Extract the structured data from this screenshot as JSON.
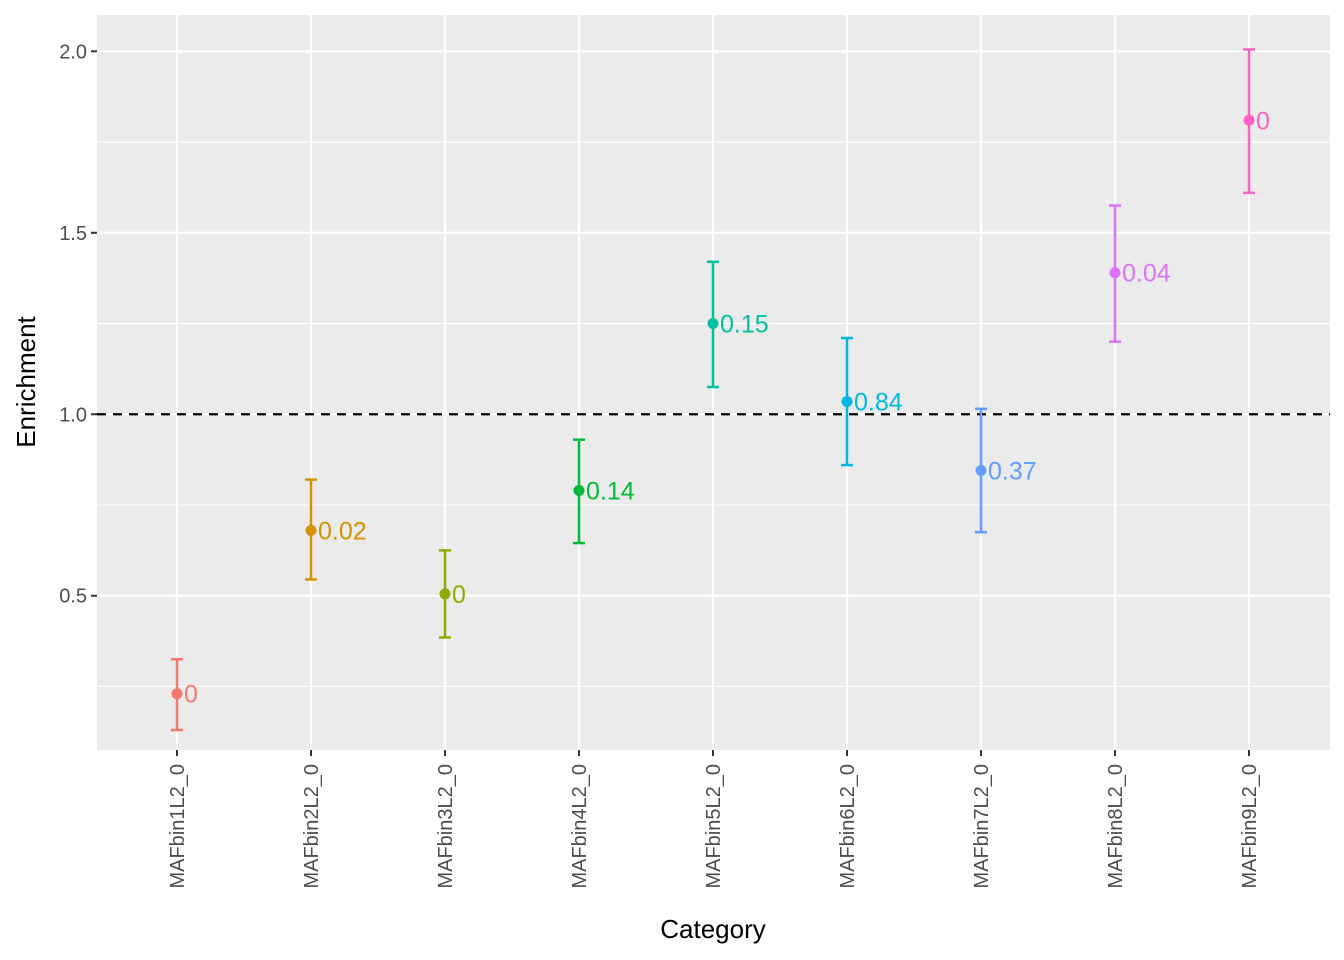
{
  "chart_data": {
    "type": "scatter",
    "xlabel": "Category",
    "ylabel": "Enrichment",
    "ylim": [
      0.075,
      2.1
    ],
    "y_ticks": [
      0.5,
      1.0,
      1.5,
      2.0
    ],
    "y_tick_labels": [
      "0.5",
      "1.0",
      "1.5",
      "2.0"
    ],
    "reference_line": {
      "y": 1.0,
      "style": "dashed",
      "color": "#000000"
    },
    "grid": true,
    "panel_background": "#EBEBEB",
    "categories": [
      "MAFbin1L2_0",
      "MAFbin2L2_0",
      "MAFbin3L2_0",
      "MAFbin4L2_0",
      "MAFbin5L2_0",
      "MAFbin6L2_0",
      "MAFbin7L2_0",
      "MAFbin8L2_0",
      "MAFbin9L2_0"
    ],
    "points": [
      {
        "category": "MAFbin1L2_0",
        "y": 0.23,
        "ymin": 0.13,
        "ymax": 0.325,
        "label": "0",
        "color": "#F8766D"
      },
      {
        "category": "MAFbin2L2_0",
        "y": 0.68,
        "ymin": 0.545,
        "ymax": 0.82,
        "label": "0.02",
        "color": "#D39200"
      },
      {
        "category": "MAFbin3L2_0",
        "y": 0.505,
        "ymin": 0.385,
        "ymax": 0.625,
        "label": "0",
        "color": "#93AA00"
      },
      {
        "category": "MAFbin4L2_0",
        "y": 0.79,
        "ymin": 0.645,
        "ymax": 0.93,
        "label": "0.14",
        "color": "#00BA38"
      },
      {
        "category": "MAFbin5L2_0",
        "y": 1.25,
        "ymin": 1.075,
        "ymax": 1.42,
        "label": "0.15",
        "color": "#00C19F"
      },
      {
        "category": "MAFbin6L2_0",
        "y": 1.035,
        "ymin": 0.86,
        "ymax": 1.21,
        "label": "0.84",
        "color": "#00B9E3"
      },
      {
        "category": "MAFbin7L2_0",
        "y": 0.845,
        "ymin": 0.675,
        "ymax": 1.015,
        "label": "0.37",
        "color": "#619CFF"
      },
      {
        "category": "MAFbin8L2_0",
        "y": 1.39,
        "ymin": 1.2,
        "ymax": 1.575,
        "label": "0.04",
        "color": "#DB72FB"
      },
      {
        "category": "MAFbin9L2_0",
        "y": 1.81,
        "ymin": 1.61,
        "ymax": 2.005,
        "label": "0",
        "color": "#FF61C3"
      }
    ]
  }
}
